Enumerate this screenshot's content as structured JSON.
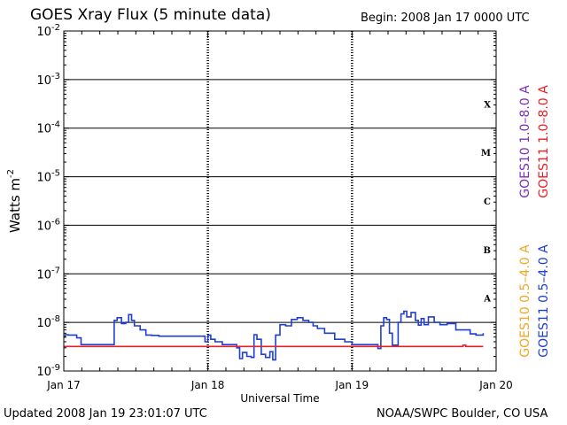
{
  "header": {
    "title": "GOES Xray Flux (5 minute data)",
    "begin": "Begin:  2008 Jan 17 0000 UTC"
  },
  "footer": {
    "updated": "Updated 2008 Jan 19 23:01:07 UTC",
    "credit": "NOAA/SWPC Boulder, CO USA"
  },
  "chart_data": {
    "type": "line",
    "title": "GOES Xray Flux (5 minute data)",
    "xlabel": "Universal Time",
    "ylabel": "Watts m",
    "ylabel_superscript": "-2",
    "y_scale": "log",
    "xlim": [
      0,
      3
    ],
    "ylim": [
      1e-09,
      0.01
    ],
    "x_ticks": [
      {
        "value": 0,
        "label": "Jan 17"
      },
      {
        "value": 1,
        "label": "Jan 18"
      },
      {
        "value": 2,
        "label": "Jan 19"
      },
      {
        "value": 3,
        "label": "Jan 20"
      }
    ],
    "y_ticks": [
      {
        "exp": -9,
        "base": "10",
        "sup": "-9"
      },
      {
        "exp": -8,
        "base": "10",
        "sup": "-8"
      },
      {
        "exp": -7,
        "base": "10",
        "sup": "-7"
      },
      {
        "exp": -6,
        "base": "10",
        "sup": "-6"
      },
      {
        "exp": -5,
        "base": "10",
        "sup": "-5"
      },
      {
        "exp": -4,
        "base": "10",
        "sup": "-4"
      },
      {
        "exp": -3,
        "base": "10",
        "sup": "-3"
      },
      {
        "exp": -2,
        "base": "10",
        "sup": "-2"
      }
    ],
    "flare_classes": [
      {
        "label": "A",
        "exp": -7.5
      },
      {
        "label": "B",
        "exp": -6.5
      },
      {
        "label": "C",
        "exp": -5.5
      },
      {
        "label": "M",
        "exp": -4.5
      },
      {
        "label": "X",
        "exp": -3.5
      }
    ],
    "legend": [
      {
        "label": "GOES10 1.0–8.0 A",
        "color": "#7b2fbe"
      },
      {
        "label": "GOES11 1.0–8.0 A",
        "color": "#e8202a"
      },
      {
        "label": "GOES10 0.5–4.0 A",
        "color": "#f5a623"
      },
      {
        "label": "GOES11 0.5–4.0 A",
        "color": "#1f3fd0"
      }
    ],
    "series": [
      {
        "name": "GOES11 0.5–4.0 A",
        "color": "#1f3fd0",
        "points": [
          [
            0.0,
            5e-09
          ],
          [
            0.01,
            5.6e-09
          ],
          [
            0.03,
            5.5e-09
          ],
          [
            0.06,
            5.5e-09
          ],
          [
            0.09,
            4.8e-09
          ],
          [
            0.12,
            3.5e-09
          ],
          [
            0.2,
            3.5e-09
          ],
          [
            0.3,
            3.5e-09
          ],
          [
            0.34,
            3.5e-09
          ],
          [
            0.35,
            1.1e-08
          ],
          [
            0.37,
            1.25e-08
          ],
          [
            0.4,
            9.5e-09
          ],
          [
            0.43,
            1e-08
          ],
          [
            0.45,
            1.45e-08
          ],
          [
            0.47,
            1.1e-08
          ],
          [
            0.49,
            8.5e-09
          ],
          [
            0.53,
            7e-09
          ],
          [
            0.57,
            5.5e-09
          ],
          [
            0.61,
            5.4e-09
          ],
          [
            0.66,
            5.2e-09
          ],
          [
            0.72,
            5.2e-09
          ],
          [
            0.78,
            5.2e-09
          ],
          [
            0.87,
            5.2e-09
          ],
          [
            0.97,
            5.2e-09
          ],
          [
            0.98,
            4e-09
          ],
          [
            1.0,
            5.5e-09
          ],
          [
            1.02,
            4.5e-09
          ],
          [
            1.05,
            4e-09
          ],
          [
            1.1,
            3.5e-09
          ],
          [
            1.16,
            3.5e-09
          ],
          [
            1.2,
            3e-09
          ],
          [
            1.22,
            1.8e-09
          ],
          [
            1.24,
            2.4e-09
          ],
          [
            1.27,
            2e-09
          ],
          [
            1.3,
            1.9e-09
          ],
          [
            1.32,
            5.6e-09
          ],
          [
            1.34,
            4.5e-09
          ],
          [
            1.37,
            2.2e-09
          ],
          [
            1.4,
            1.9e-09
          ],
          [
            1.43,
            2.5e-09
          ],
          [
            1.45,
            1.7e-09
          ],
          [
            1.47,
            5.5e-09
          ],
          [
            1.5,
            9e-09
          ],
          [
            1.54,
            8.5e-09
          ],
          [
            1.58,
            1.15e-08
          ],
          [
            1.62,
            1.25e-08
          ],
          [
            1.66,
            1.1e-08
          ],
          [
            1.7,
            1e-08
          ],
          [
            1.73,
            8.5e-09
          ],
          [
            1.76,
            7.5e-09
          ],
          [
            1.81,
            6e-09
          ],
          [
            1.88,
            4.5e-09
          ],
          [
            1.95,
            4e-09
          ],
          [
            2.0,
            3.5e-09
          ],
          [
            2.05,
            3.5e-09
          ],
          [
            2.1,
            3.5e-09
          ],
          [
            2.17,
            3.5e-09
          ],
          [
            2.18,
            2.9e-09
          ],
          [
            2.2,
            8.5e-09
          ],
          [
            2.22,
            1.25e-08
          ],
          [
            2.24,
            1.15e-08
          ],
          [
            2.26,
            6e-09
          ],
          [
            2.28,
            3.4e-09
          ],
          [
            2.3,
            3.4e-09
          ],
          [
            2.32,
            1e-08
          ],
          [
            2.34,
            1.5e-08
          ],
          [
            2.36,
            1.7e-08
          ],
          [
            2.38,
            1.3e-08
          ],
          [
            2.41,
            1.6e-08
          ],
          [
            2.44,
            1.1e-08
          ],
          [
            2.46,
            8.8e-09
          ],
          [
            2.48,
            1.2e-08
          ],
          [
            2.5,
            9e-09
          ],
          [
            2.53,
            1.3e-08
          ],
          [
            2.57,
            1e-08
          ],
          [
            2.61,
            9e-09
          ],
          [
            2.66,
            9.5e-09
          ],
          [
            2.72,
            7e-09
          ],
          [
            2.77,
            7e-09
          ],
          [
            2.82,
            5.8e-09
          ],
          [
            2.86,
            5.5e-09
          ],
          [
            2.9,
            5.5e-09
          ],
          [
            2.91,
            6e-09
          ]
        ]
      },
      {
        "name": "GOES11 1.0–8.0 A",
        "color": "#e8202a",
        "points": [
          [
            0.0,
            3.2e-09
          ],
          [
            0.5,
            3.2e-09
          ],
          [
            1.0,
            3.2e-09
          ],
          [
            1.5,
            3.2e-09
          ],
          [
            2.0,
            3.2e-09
          ],
          [
            2.5,
            3.2e-09
          ],
          [
            2.75,
            3.2e-09
          ],
          [
            2.77,
            3.4e-09
          ],
          [
            2.79,
            3.2e-09
          ],
          [
            2.91,
            3.2e-09
          ]
        ]
      }
    ]
  }
}
